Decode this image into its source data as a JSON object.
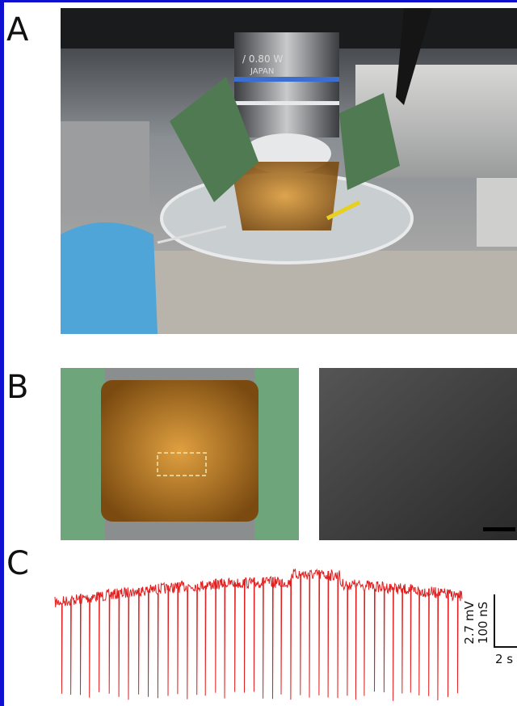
{
  "panels": {
    "a": {
      "label": "A",
      "objective_text": [
        "/ 0.80 W",
        "JAPAN"
      ]
    },
    "b": {
      "label": "B"
    },
    "c": {
      "label": "C",
      "scale_bar": {
        "vertical": [
          "100 nS",
          "2.7 mV"
        ],
        "horizontal": "2 s"
      }
    }
  }
}
